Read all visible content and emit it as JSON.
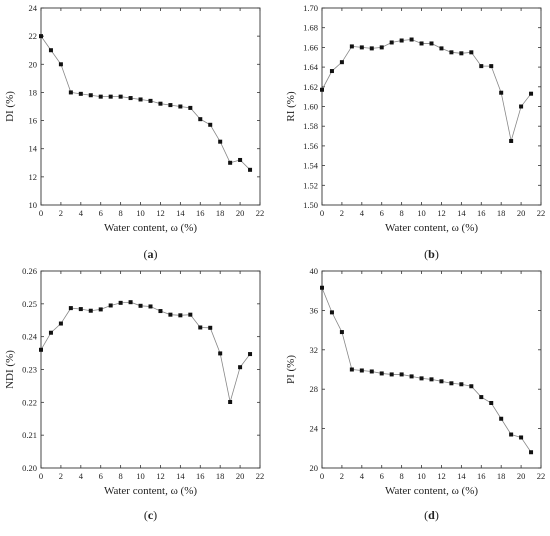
{
  "chart_data": [
    {
      "type": "line",
      "panel": "a",
      "caption_letter": "a",
      "xlabel": "Water content, ω (%)",
      "ylabel": "DI (%)",
      "xlim": [
        0,
        22
      ],
      "ylim": [
        10,
        24
      ],
      "xticks": [
        0,
        2,
        4,
        6,
        8,
        10,
        12,
        14,
        16,
        18,
        20,
        22
      ],
      "yticks": [
        10,
        12,
        14,
        16,
        18,
        20,
        22,
        24
      ],
      "grid": false,
      "series": [
        {
          "x": [
            0,
            1,
            2,
            3,
            4,
            5,
            6,
            7,
            8,
            9,
            10,
            11,
            12,
            13,
            14,
            15,
            16,
            17,
            18,
            19,
            20,
            21
          ],
          "y": [
            22.0,
            21.0,
            20.0,
            18.0,
            17.9,
            17.8,
            17.7,
            17.7,
            17.7,
            17.6,
            17.5,
            17.4,
            17.2,
            17.1,
            17.0,
            16.9,
            16.1,
            15.7,
            14.5,
            13.0,
            13.2,
            12.5
          ]
        }
      ]
    },
    {
      "type": "line",
      "panel": "b",
      "caption_letter": "b",
      "xlabel": "Water content, ω (%)",
      "ylabel": "RI (%)",
      "xlim": [
        0,
        22
      ],
      "ylim": [
        1.5,
        1.7
      ],
      "xticks": [
        0,
        2,
        4,
        6,
        8,
        10,
        12,
        14,
        16,
        18,
        20,
        22
      ],
      "yticks": [
        "1.50",
        "1.52",
        "1.54",
        "1.56",
        "1.58",
        "1.60",
        "1.62",
        "1.64",
        "1.66",
        "1.68",
        "1.70"
      ],
      "grid": false,
      "series": [
        {
          "x": [
            0,
            1,
            2,
            3,
            4,
            5,
            6,
            7,
            8,
            9,
            10,
            11,
            12,
            13,
            14,
            15,
            16,
            17,
            18,
            19,
            20,
            21
          ],
          "y": [
            1.617,
            1.636,
            1.645,
            1.661,
            1.66,
            1.659,
            1.66,
            1.665,
            1.667,
            1.668,
            1.664,
            1.664,
            1.659,
            1.655,
            1.654,
            1.655,
            1.641,
            1.641,
            1.614,
            1.565,
            1.6,
            1.613
          ]
        }
      ]
    },
    {
      "type": "line",
      "panel": "c",
      "caption_letter": "c",
      "xlabel": "Water content, ω (%)",
      "ylabel": "NDI (%)",
      "xlim": [
        0,
        22
      ],
      "ylim": [
        0.2,
        0.26
      ],
      "xticks": [
        0,
        2,
        4,
        6,
        8,
        10,
        12,
        14,
        16,
        18,
        20,
        22
      ],
      "yticks": [
        "0.20",
        "0.21",
        "0.22",
        "0.23",
        "0.24",
        "0.25",
        "0.26"
      ],
      "grid": false,
      "series": [
        {
          "x": [
            0,
            1,
            2,
            3,
            4,
            5,
            6,
            7,
            8,
            9,
            10,
            11,
            12,
            13,
            14,
            15,
            16,
            17,
            18,
            19,
            20,
            21
          ],
          "y": [
            0.236,
            0.2412,
            0.244,
            0.2487,
            0.2484,
            0.2479,
            0.2483,
            0.2495,
            0.2503,
            0.2505,
            0.2494,
            0.2492,
            0.2478,
            0.2467,
            0.2465,
            0.2467,
            0.2428,
            0.2427,
            0.2349,
            0.2201,
            0.2307,
            0.2347
          ]
        }
      ]
    },
    {
      "type": "line",
      "panel": "d",
      "caption_letter": "d",
      "xlabel": "Water content, ω (%)",
      "ylabel": "PI (%)",
      "xlim": [
        0,
        22
      ],
      "ylim": [
        20,
        40
      ],
      "xticks": [
        0,
        2,
        4,
        6,
        8,
        10,
        12,
        14,
        16,
        18,
        20,
        22
      ],
      "yticks": [
        20,
        24,
        28,
        32,
        36,
        40
      ],
      "grid": false,
      "series": [
        {
          "x": [
            0,
            1,
            2,
            3,
            4,
            5,
            6,
            7,
            8,
            9,
            10,
            11,
            12,
            13,
            14,
            15,
            16,
            17,
            18,
            19,
            20,
            21
          ],
          "y": [
            38.3,
            35.8,
            33.8,
            30.0,
            29.9,
            29.8,
            29.6,
            29.5,
            29.5,
            29.3,
            29.1,
            29.0,
            28.8,
            28.6,
            28.5,
            28.3,
            27.2,
            26.6,
            25.0,
            23.4,
            23.1,
            21.6
          ]
        }
      ]
    }
  ]
}
